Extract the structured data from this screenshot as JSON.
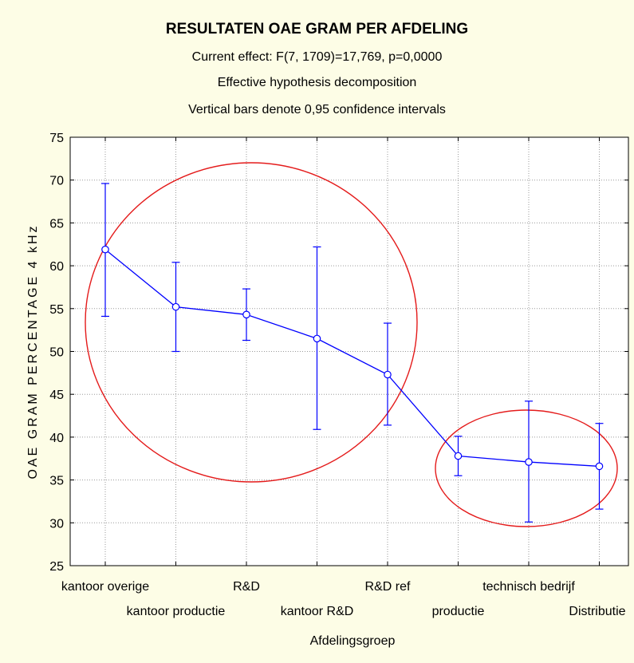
{
  "chart_data": {
    "type": "line",
    "title": "RESULTATEN OAE GRAM PER AFDELING",
    "subtitles": [
      "Current effect: F(7, 1709)=17,769, p=0,0000",
      "Effective hypothesis decomposition",
      "Vertical bars denote 0,95 confidence intervals"
    ],
    "xlabel": "Afdelingsgroep",
    "ylabel": "OAE GRAM PERCENTAGE 4 kHz",
    "categories": [
      "kantoor overige",
      "kantoor productie",
      "R&D",
      "kantoor R&D",
      "R&D ref",
      "productie",
      "technisch bedrijf",
      "Distributie"
    ],
    "series": [
      {
        "values": [
          61.9,
          55.2,
          54.3,
          51.5,
          47.3,
          37.8,
          37.1,
          36.6
        ],
        "ci_low": [
          54.1,
          50.0,
          51.3,
          40.9,
          41.4,
          35.5,
          30.1,
          31.6
        ],
        "ci_high": [
          69.6,
          60.4,
          57.3,
          62.2,
          53.3,
          40.1,
          44.2,
          41.6
        ],
        "color": "#0000ff"
      }
    ],
    "ylim": [
      25,
      75
    ],
    "yticks": [
      25,
      30,
      35,
      40,
      45,
      50,
      55,
      60,
      65,
      70,
      75
    ],
    "grid": true,
    "annotations": [
      {
        "shape": "ellipse",
        "color": "#e41b1b",
        "encloses": [
          "kantoor overige",
          "kantoor productie",
          "R&D",
          "kantoor R&D",
          "R&D ref"
        ]
      },
      {
        "shape": "ellipse",
        "color": "#e41b1b",
        "encloses": [
          "productie",
          "technisch bedrijf",
          "Distributie"
        ]
      }
    ]
  }
}
